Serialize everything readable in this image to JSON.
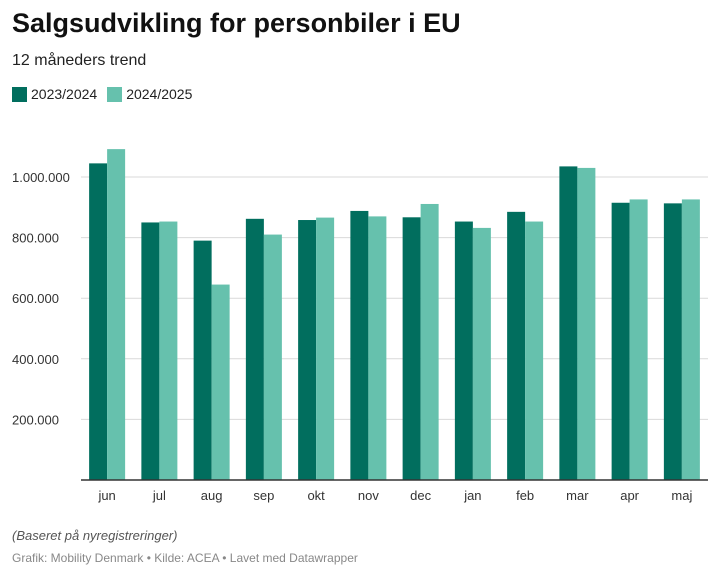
{
  "header": {
    "title": "Salgsudvikling for personbiler i EU",
    "subtitle": "12 måneders trend"
  },
  "footer": {
    "note": "(Baseret på nyregistreringer)",
    "credits": "Grafik: Mobility Denmark • Kilde: ACEA • Lavet med Datawrapper"
  },
  "colors": {
    "series_2023_2024": "#016e5e",
    "series_2024_2025": "#66c1ad",
    "gridline": "#d9d9d9",
    "axis": "#333333"
  },
  "chart_data": {
    "type": "bar",
    "title": "Salgsudvikling for personbiler i EU",
    "subtitle": "12 måneders trend",
    "xlabel": "",
    "ylabel": "",
    "categories": [
      "jun",
      "jul",
      "aug",
      "sep",
      "okt",
      "nov",
      "dec",
      "jan",
      "feb",
      "mar",
      "apr",
      "maj"
    ],
    "series": [
      {
        "name": "2023/2024",
        "color": "#016e5e",
        "values": [
          1045000,
          850000,
          790000,
          862000,
          858000,
          888000,
          867000,
          853000,
          885000,
          1035000,
          915000,
          913000
        ]
      },
      {
        "name": "2024/2025",
        "color": "#66c1ad",
        "values": [
          1092000,
          853000,
          645000,
          810000,
          866000,
          870000,
          911000,
          832000,
          853000,
          1030000,
          926000,
          926000
        ]
      }
    ],
    "ylim": [
      0,
      1100000
    ],
    "yticks": [
      {
        "value": 200000,
        "label": "200.000"
      },
      {
        "value": 400000,
        "label": "400.000"
      },
      {
        "value": 600000,
        "label": "600.000"
      },
      {
        "value": 800000,
        "label": "800.000"
      },
      {
        "value": 1000000,
        "label": "1.000.000"
      }
    ],
    "grid": true,
    "legend": "top-left"
  }
}
